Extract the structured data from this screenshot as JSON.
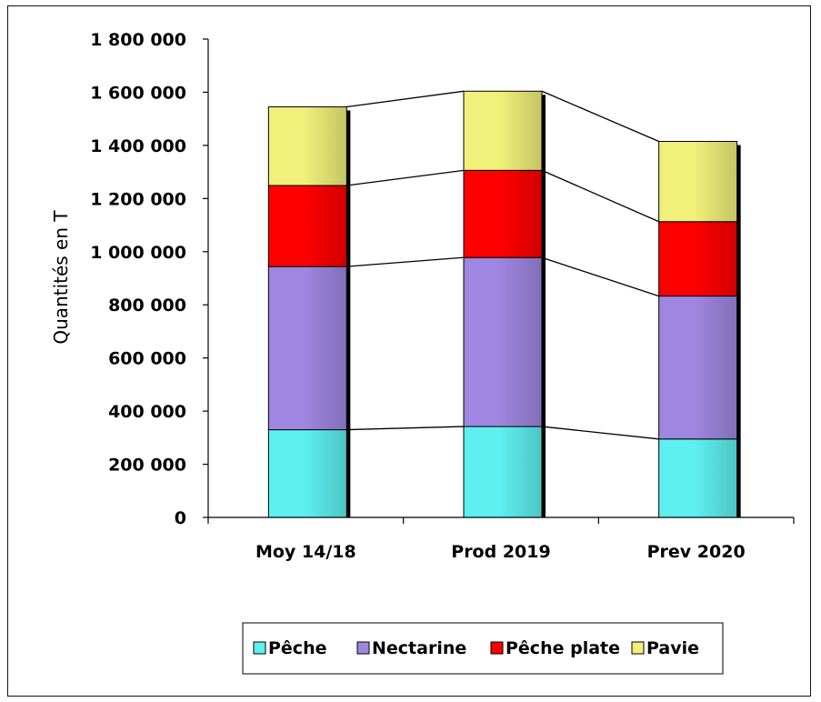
{
  "chart_data": {
    "type": "bar",
    "stacked": true,
    "categories": [
      "Moy 14/18",
      "Prod 2019",
      "Prev 2020"
    ],
    "series": [
      {
        "name": "Pêche",
        "values": [
          330000,
          342000,
          295000
        ],
        "color": "#5ef0f0"
      },
      {
        "name": "Nectarine",
        "values": [
          614000,
          636000,
          538000
        ],
        "color": "#9f86e0"
      },
      {
        "name": "Pêche plate",
        "values": [
          305000,
          328000,
          280000
        ],
        "color": "#ff0000"
      },
      {
        "name": "Pavie",
        "values": [
          296000,
          298000,
          302000
        ],
        "color": "#f0f07a"
      }
    ],
    "ylabel": "Quantités en T",
    "xlabel": "",
    "ylim": [
      0,
      1800000
    ],
    "y_ticks": [
      "0",
      "200 000",
      "400 000",
      "600 000",
      "800 000",
      "1 000 000",
      "1 200 000",
      "1 400 000",
      "1 600 000",
      "1 800 000"
    ],
    "series_lines": true,
    "grid": false,
    "legend_position": "bottom"
  }
}
